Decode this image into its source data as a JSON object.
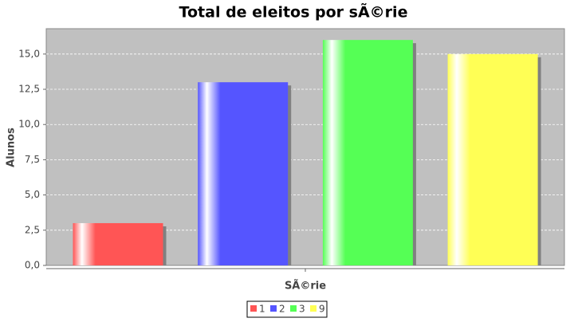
{
  "chart_data": {
    "type": "bar",
    "title": "Total de eleitos por sÃ©rie",
    "x_label": "SÃ©rie",
    "y_label": "Alunos",
    "categories": [
      null
    ],
    "series": [
      {
        "name": "1",
        "color": "#ff5555",
        "values": [
          3
        ]
      },
      {
        "name": "2",
        "color": "#5555ff",
        "values": [
          13
        ]
      },
      {
        "name": "3",
        "color": "#55ff55",
        "values": [
          16
        ]
      },
      {
        "name": "9",
        "color": "#ffff55",
        "values": [
          15
        ]
      }
    ],
    "ylim": [
      0,
      16.8
    ],
    "yticks": [
      {
        "value": 0,
        "label": "0,0"
      },
      {
        "value": 2.5,
        "label": "2,5"
      },
      {
        "value": 5,
        "label": "5,0"
      },
      {
        "value": 7.5,
        "label": "7,5"
      },
      {
        "value": 10,
        "label": "10,0"
      },
      {
        "value": 12.5,
        "label": "12,5"
      },
      {
        "value": 15,
        "label": "15,0"
      }
    ],
    "grid": true,
    "legend": "bottom"
  }
}
